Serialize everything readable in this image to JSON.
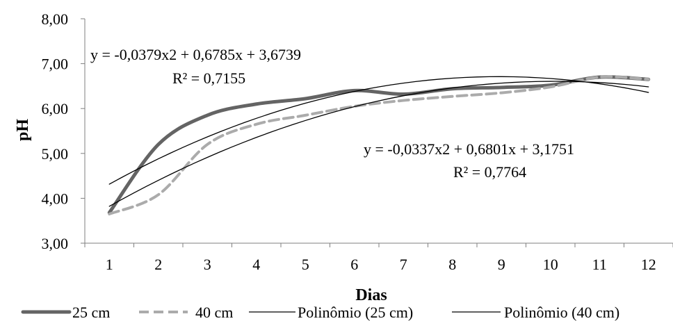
{
  "chart_data": {
    "type": "line",
    "x": [
      1,
      2,
      3,
      4,
      5,
      6,
      7,
      8,
      9,
      10,
      11,
      12
    ],
    "xlabel": "Dias",
    "ylabel": "pH",
    "ylim": [
      3,
      8
    ],
    "xlim": [
      0.5,
      12.5
    ],
    "x_tick_labels": [
      "1",
      "2",
      "3",
      "4",
      "5",
      "6",
      "7",
      "8",
      "9",
      "10",
      "11",
      "12"
    ],
    "y_tick_labels": [
      "3,00",
      "4,00",
      "5,00",
      "6,00",
      "7,00",
      "8,00"
    ],
    "y_ticks": [
      3,
      4,
      5,
      6,
      7,
      8
    ],
    "grid": false,
    "legend_position": "bottom",
    "series": [
      {
        "name": "25 cm",
        "color": "#646464",
        "style": "thick-solid",
        "values": [
          3.68,
          5.2,
          5.85,
          6.1,
          6.22,
          6.4,
          6.32,
          6.44,
          6.47,
          6.52,
          6.7,
          6.65
        ]
      },
      {
        "name": "40 cm",
        "color": "#ababab",
        "style": "dashed",
        "values": [
          3.65,
          4.08,
          5.2,
          5.65,
          5.85,
          6.05,
          6.18,
          6.27,
          6.35,
          6.48,
          6.7,
          6.65
        ]
      },
      {
        "name": "Polinômio (25 cm)",
        "color": "#000000",
        "style": "thin-solid",
        "poly": [
          -0.0379,
          0.6785,
          3.6739
        ]
      },
      {
        "name": "Polinômio (40 cm)",
        "color": "#000000",
        "style": "thin-solid",
        "poly": [
          -0.0337,
          0.6801,
          3.1751
        ]
      }
    ],
    "annotations": [
      {
        "line1": "y = -0,0379x2 + 0,6785x + 3,6739",
        "line2": "R² = 0,7155"
      },
      {
        "line1": "y = -0,0337x2 + 0,6801x + 3,1751",
        "line2": "R² = 0,7764"
      }
    ]
  }
}
